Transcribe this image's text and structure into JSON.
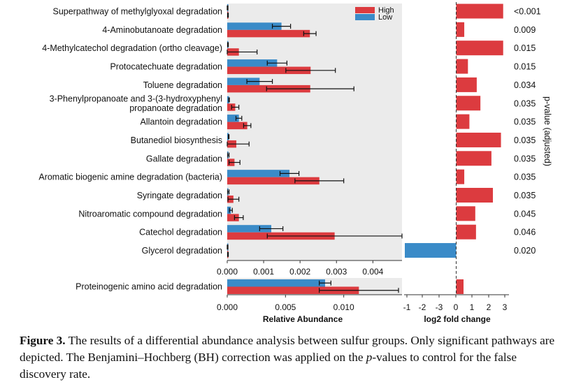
{
  "chart_data": {
    "type": "bar",
    "categories": [
      [
        "Superpathway of methylglyoxal degradation"
      ],
      [
        "4-Aminobutanoate degradation"
      ],
      [
        "4-Methylcatechol degradation (ortho cleavage)"
      ],
      [
        "Protocatechuate degradation"
      ],
      [
        "Toluene degradation"
      ],
      [
        "3-Phenylpropanoate and 3-(3-hydroxyphenyl",
        "propanoate degradation"
      ],
      [
        "Allantoin degradation"
      ],
      [
        "Butanediol biosynthesis"
      ],
      [
        "Gallate degradation"
      ],
      [
        "Aromatic biogenic amine degradation (bacteria)"
      ],
      [
        "Syringate degradation"
      ],
      [
        "Nitroaromatic compound degradation"
      ],
      [
        "Catechol degradation"
      ],
      [
        "Glycerol degradation"
      ]
    ],
    "series": [
      {
        "name": "High",
        "color": "#dc3b3f",
        "values": [
          2e-05,
          0.00227,
          0.00032,
          0.00229,
          0.00228,
          0.00022,
          0.00055,
          0.00025,
          0.0002,
          0.00253,
          0.00017,
          0.00032,
          0.00295,
          2e-05
        ],
        "err": [
          1e-05,
          0.00017,
          0.0005,
          0.00068,
          0.0012,
          0.0001,
          0.0001,
          0.00035,
          0.00015,
          0.00067,
          0.00015,
          0.00012,
          0.00185,
          1e-05
        ]
      },
      {
        "name": "Low",
        "color": "#3a8bc8",
        "values": [
          1e-05,
          0.00149,
          2e-05,
          0.00137,
          0.00089,
          5e-05,
          0.00032,
          4e-05,
          3e-05,
          0.00171,
          3e-05,
          0.0001,
          0.00121,
          1e-05
        ],
        "err": [
          1e-05,
          0.00025,
          1e-05,
          0.00027,
          0.00035,
          1e-05,
          8e-05,
          1e-05,
          2e-05,
          0.00026,
          2e-05,
          4e-05,
          0.00032,
          1e-05
        ]
      }
    ],
    "xlim": [
      0,
      0.0048
    ],
    "xticks": [
      "0.000",
      "0.001",
      "0.002",
      "0.003",
      "0.004"
    ],
    "separate_panel": {
      "category": "Proteinogenic amino acid degradation",
      "high": 0.0113,
      "high_err": 0.0034,
      "low": 0.0084,
      "low_err": 0.0005,
      "xlim": [
        0,
        0.015
      ],
      "xticks": [
        "0.000",
        "0.005",
        "0.010"
      ]
    },
    "xlabel": "Relative Abundance",
    "legend": {
      "position": "top-right",
      "labels": [
        "High",
        "Low"
      ]
    },
    "log2fc": {
      "values": [
        3.2,
        0.55,
        3.2,
        0.8,
        1.4,
        1.65,
        0.9,
        3.05,
        2.4,
        0.55,
        2.5,
        1.3,
        1.35,
        -3.5,
        0.5
      ],
      "xlim": [
        -3.5,
        3.5
      ],
      "xticks": [
        "-1",
        "-2",
        "-3",
        "0",
        "1",
        "2",
        "3"
      ],
      "xlabel": "log2 fold change"
    },
    "pvalues": [
      "<0.001",
      "0.009",
      "0.015",
      "0.015",
      "0.034",
      "0.035",
      "0.035",
      "0.035",
      "0.035",
      "0.035",
      "0.035",
      "0.045",
      "0.046",
      "0.020"
    ],
    "pvalue_label": "p-value (adjusted)"
  },
  "caption": {
    "label": "Figure 3.",
    "text1": " The results of a differential abundance analysis between sulfur groups. Only significant pathways are depicted. The Benjamini–Hochberg (BH) correction was applied on the ",
    "pitalic": "p",
    "text2": "-values to control for the false discovery rate."
  }
}
